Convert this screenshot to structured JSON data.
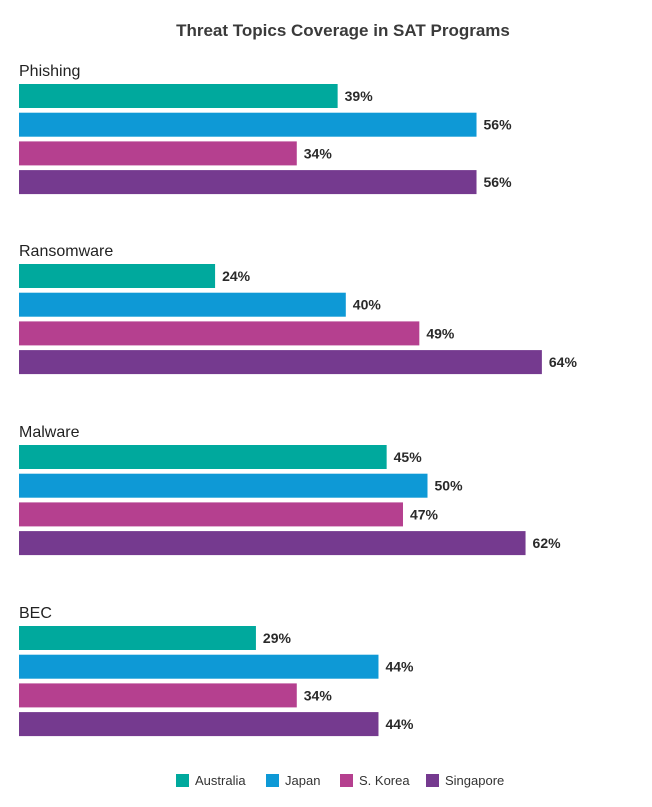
{
  "chart_data": {
    "type": "bar",
    "orientation": "horizontal",
    "title": "Threat Topics Coverage in SAT Programs",
    "xlabel": "",
    "ylabel": "",
    "xlim": [
      0,
      64
    ],
    "grid": false,
    "legend_position": "bottom",
    "value_suffix": "%",
    "categories": [
      "Phishing",
      "Ransomware",
      "Malware",
      "BEC"
    ],
    "series": [
      {
        "name": "Australia",
        "color": "#00a99d",
        "values": [
          39,
          24,
          45,
          29
        ]
      },
      {
        "name": "Japan",
        "color": "#0e99d6",
        "values": [
          56,
          40,
          50,
          44
        ]
      },
      {
        "name": "S. Korea",
        "color": "#b5408f",
        "values": [
          34,
          49,
          47,
          34
        ]
      },
      {
        "name": "Singapore",
        "color": "#753a8f",
        "values": [
          56,
          64,
          62,
          44
        ]
      }
    ]
  }
}
